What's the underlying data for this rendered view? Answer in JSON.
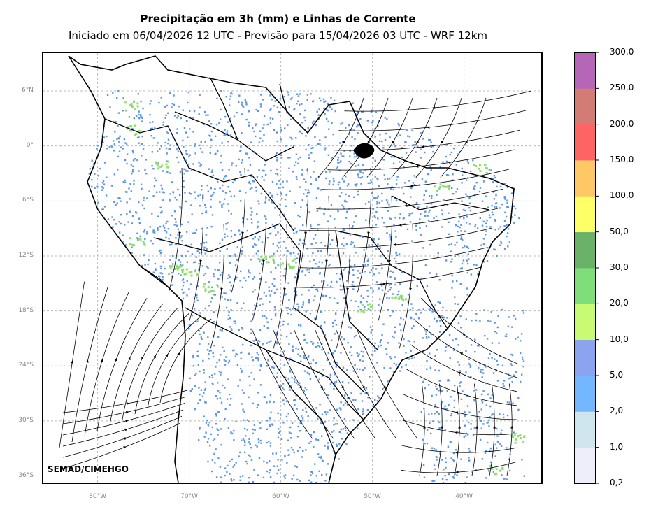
{
  "title": "Precipitação em 3h (mm) e Linhas de Corrente",
  "subtitle": "Iniciado em 06/04/2026 12 UTC - Previsão para 15/04/2026 03 UTC - WRF 12km",
  "credit": "SEMAD/CIMEHGO",
  "lat_ticks": [
    "6°N",
    "0°",
    "6°S",
    "12°S",
    "18°S",
    "24°S",
    "30°S",
    "36°S"
  ],
  "lon_ticks": [
    "80°W",
    "70°W",
    "60°W",
    "50°W",
    "40°W"
  ],
  "colorbar": {
    "labels": [
      "0,2",
      "1,0",
      "2,0",
      "5,0",
      "10,0",
      "20,0",
      "30,0",
      "50,0",
      "100,0",
      "150,0",
      "200,0",
      "250,0",
      "300,0"
    ],
    "colors": [
      "#eeeefa",
      "#cfe6ef",
      "#73b8ff",
      "#8ca3ef",
      "#c8fa73",
      "#7fdd7a",
      "#6ab26a",
      "#ffff66",
      "#ffc866",
      "#ff6464",
      "#d37c76",
      "#b566b8"
    ]
  },
  "map_data": {
    "extent": {
      "lon": [
        -86,
        -31.5
      ],
      "lat": [
        -36.8,
        10.2
      ]
    },
    "grid": "on",
    "colors": {
      "coast": "#000000",
      "grid": "#bbbbbb",
      "precip": "#5d96e8",
      "precip_heavy": "#8ee06a"
    }
  }
}
